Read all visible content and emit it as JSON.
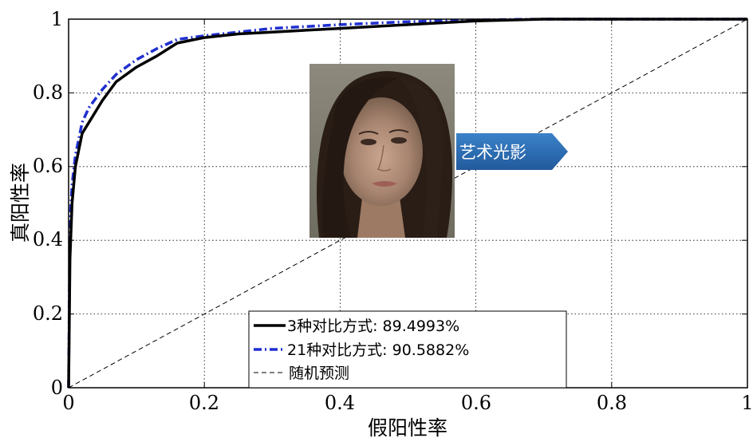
{
  "chart_data": {
    "type": "line",
    "xlabel": "假阳性率",
    "ylabel": "真阳性率",
    "xlim": [
      0,
      1
    ],
    "ylim": [
      0,
      1
    ],
    "xticks": [
      "0",
      "0.2",
      "0.4",
      "0.6",
      "0.8",
      "1"
    ],
    "yticks": [
      "0",
      "0.2",
      "0.4",
      "0.6",
      "0.8",
      "1"
    ],
    "grid": true,
    "legend_position": "bottom-center",
    "series": [
      {
        "name": "3种对比方式: 89.4993%",
        "color": "#000000",
        "style": "solid",
        "x": [
          0,
          0.002,
          0.005,
          0.01,
          0.02,
          0.03,
          0.05,
          0.07,
          0.1,
          0.13,
          0.16,
          0.2,
          0.25,
          0.3,
          0.4,
          0.5,
          0.6,
          0.7,
          0.8,
          1.0
        ],
        "y": [
          0,
          0.35,
          0.5,
          0.6,
          0.69,
          0.72,
          0.78,
          0.83,
          0.87,
          0.9,
          0.935,
          0.95,
          0.96,
          0.965,
          0.975,
          0.985,
          0.995,
          1.0,
          1.0,
          1.0
        ]
      },
      {
        "name": "21种对比方式: 90.5882%",
        "color": "#1f2fd0",
        "style": "dashdot",
        "x": [
          0,
          0.002,
          0.005,
          0.01,
          0.02,
          0.03,
          0.05,
          0.07,
          0.1,
          0.13,
          0.16,
          0.2,
          0.25,
          0.3,
          0.4,
          0.5,
          0.6,
          0.7,
          0.8,
          1.0
        ],
        "y": [
          0,
          0.45,
          0.55,
          0.63,
          0.72,
          0.76,
          0.81,
          0.85,
          0.89,
          0.92,
          0.945,
          0.955,
          0.965,
          0.975,
          0.985,
          0.993,
          0.998,
          1.0,
          1.0,
          1.0
        ]
      },
      {
        "name": "随机预测",
        "color": "#000000",
        "style": "dashed",
        "x": [
          0,
          1
        ],
        "y": [
          0,
          1
        ]
      }
    ]
  },
  "overlay": {
    "photo_icon": "portrait-photo",
    "tag_text": "艺术光影",
    "tag_color": "#2b6cb4"
  }
}
